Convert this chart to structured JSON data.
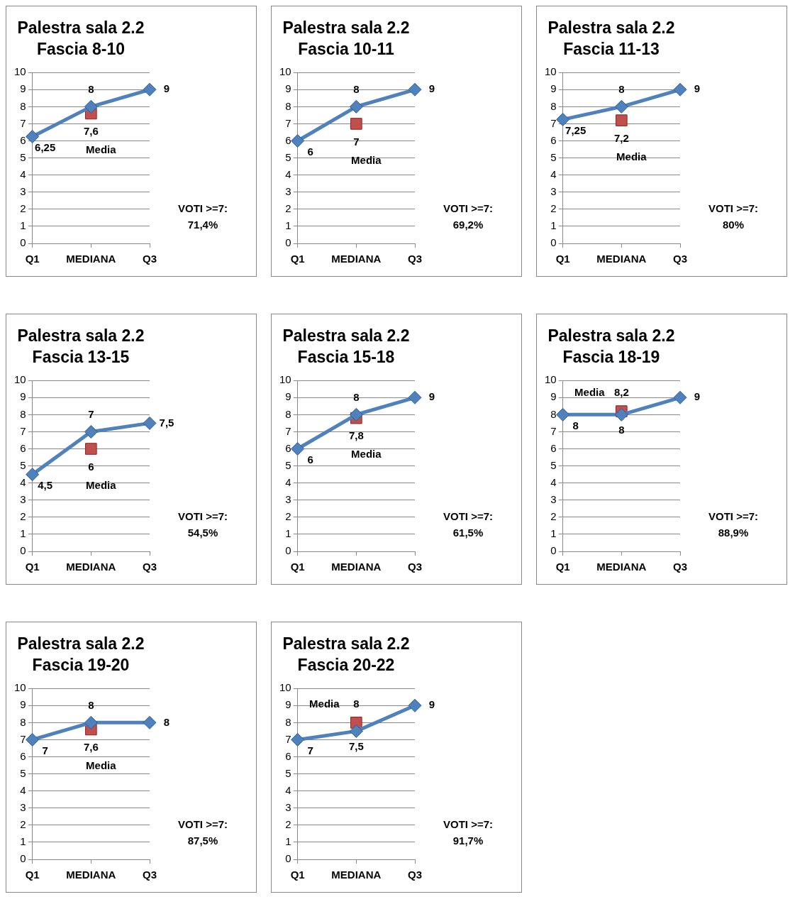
{
  "chart_data": [
    {
      "type": "line",
      "title": "Palestra sala 2.2",
      "subtitle": "Fascia 8-10",
      "categories": [
        "Q1",
        "MEDIANA",
        "Q3"
      ],
      "ylim": [
        0,
        10
      ],
      "yticks": [
        0,
        1,
        2,
        3,
        4,
        5,
        6,
        7,
        8,
        9,
        10
      ],
      "grid": "y",
      "annotations": [
        "VOTI >=7:",
        "71,4%"
      ],
      "series": [
        {
          "color": "#4f81bd",
          "marker": "diamond",
          "values": [
            6.25,
            8,
            9
          ],
          "value_labels": [
            "6,25",
            "8",
            "9"
          ]
        },
        {
          "type": "scatter",
          "name": "Media",
          "color": "#c0504d",
          "marker": "square",
          "x": [
            "MEDIANA"
          ],
          "values": [
            7.6
          ],
          "value_labels": [
            "7,6"
          ]
        }
      ]
    },
    {
      "type": "line",
      "title": "Palestra sala 2.2",
      "subtitle": "Fascia 10-11",
      "categories": [
        "Q1",
        "MEDIANA",
        "Q3"
      ],
      "ylim": [
        0,
        10
      ],
      "yticks": [
        0,
        1,
        2,
        3,
        4,
        5,
        6,
        7,
        8,
        9,
        10
      ],
      "grid": "y",
      "annotations": [
        "VOTI >=7:",
        "69,2%"
      ],
      "series": [
        {
          "color": "#4f81bd",
          "marker": "diamond",
          "values": [
            6,
            8,
            9
          ],
          "value_labels": [
            "6",
            "8",
            "9"
          ]
        },
        {
          "type": "scatter",
          "name": "Media",
          "color": "#c0504d",
          "marker": "square",
          "x": [
            "MEDIANA"
          ],
          "values": [
            7
          ],
          "value_labels": [
            "7"
          ]
        }
      ]
    },
    {
      "type": "line",
      "title": "Palestra sala 2.2",
      "subtitle": "Fascia 11-13",
      "categories": [
        "Q1",
        "MEDIANA",
        "Q3"
      ],
      "ylim": [
        0,
        10
      ],
      "yticks": [
        0,
        1,
        2,
        3,
        4,
        5,
        6,
        7,
        8,
        9,
        10
      ],
      "grid": "y",
      "annotations": [
        "VOTI >=7:",
        "80%"
      ],
      "series": [
        {
          "color": "#4f81bd",
          "marker": "diamond",
          "values": [
            7.25,
            8,
            9
          ],
          "value_labels": [
            "7,25",
            "8",
            "9"
          ]
        },
        {
          "type": "scatter",
          "name": "Media",
          "color": "#c0504d",
          "marker": "square",
          "x": [
            "MEDIANA"
          ],
          "values": [
            7.2
          ],
          "value_labels": [
            "7,2"
          ]
        }
      ]
    },
    {
      "type": "line",
      "title": "Palestra sala 2.2",
      "subtitle": "Fascia 13-15",
      "categories": [
        "Q1",
        "MEDIANA",
        "Q3"
      ],
      "ylim": [
        0,
        10
      ],
      "yticks": [
        0,
        1,
        2,
        3,
        4,
        5,
        6,
        7,
        8,
        9,
        10
      ],
      "grid": "y",
      "annotations": [
        "VOTI >=7:",
        "54,5%"
      ],
      "series": [
        {
          "color": "#4f81bd",
          "marker": "diamond",
          "values": [
            4.5,
            7,
            7.5
          ],
          "value_labels": [
            "4,5",
            "7",
            "7,5"
          ]
        },
        {
          "type": "scatter",
          "name": "Media",
          "color": "#c0504d",
          "marker": "square",
          "x": [
            "MEDIANA"
          ],
          "values": [
            6
          ],
          "value_labels": [
            "6"
          ]
        }
      ]
    },
    {
      "type": "line",
      "title": "Palestra sala 2.2",
      "subtitle": "Fascia 15-18",
      "categories": [
        "Q1",
        "MEDIANA",
        "Q3"
      ],
      "ylim": [
        0,
        10
      ],
      "yticks": [
        0,
        1,
        2,
        3,
        4,
        5,
        6,
        7,
        8,
        9,
        10
      ],
      "grid": "y",
      "annotations": [
        "VOTI >=7:",
        "61,5%"
      ],
      "series": [
        {
          "color": "#4f81bd",
          "marker": "diamond",
          "values": [
            6,
            8,
            9
          ],
          "value_labels": [
            "6",
            "8",
            "9"
          ]
        },
        {
          "type": "scatter",
          "name": "Media",
          "color": "#c0504d",
          "marker": "square",
          "x": [
            "MEDIANA"
          ],
          "values": [
            7.8
          ],
          "value_labels": [
            "7,8"
          ]
        }
      ]
    },
    {
      "type": "line",
      "title": "Palestra sala 2.2",
      "subtitle": "Fascia 18-19",
      "categories": [
        "Q1",
        "MEDIANA",
        "Q3"
      ],
      "ylim": [
        0,
        10
      ],
      "yticks": [
        0,
        1,
        2,
        3,
        4,
        5,
        6,
        7,
        8,
        9,
        10
      ],
      "grid": "y",
      "annotations": [
        "VOTI >=7:",
        "88,9%"
      ],
      "series": [
        {
          "color": "#4f81bd",
          "marker": "diamond",
          "values": [
            8,
            8,
            9
          ],
          "value_labels": [
            "8",
            "8",
            "9"
          ]
        },
        {
          "type": "scatter",
          "name": "Media",
          "color": "#c0504d",
          "marker": "square",
          "x": [
            "MEDIANA"
          ],
          "values": [
            8.2
          ],
          "value_labels": [
            "8,2"
          ]
        }
      ]
    },
    {
      "type": "line",
      "title": "Palestra sala 2.2",
      "subtitle": "Fascia 19-20",
      "categories": [
        "Q1",
        "MEDIANA",
        "Q3"
      ],
      "ylim": [
        0,
        10
      ],
      "yticks": [
        0,
        1,
        2,
        3,
        4,
        5,
        6,
        7,
        8,
        9,
        10
      ],
      "grid": "y",
      "annotations": [
        "VOTI >=7:",
        "87,5%"
      ],
      "series": [
        {
          "color": "#4f81bd",
          "marker": "diamond",
          "values": [
            7,
            8,
            8
          ],
          "value_labels": [
            "7",
            "8",
            "8"
          ]
        },
        {
          "type": "scatter",
          "name": "Media",
          "color": "#c0504d",
          "marker": "square",
          "x": [
            "MEDIANA"
          ],
          "values": [
            7.6
          ],
          "value_labels": [
            "7,6"
          ]
        }
      ]
    },
    {
      "type": "line",
      "title": "Palestra sala 2.2",
      "subtitle": "Fascia 20-22",
      "categories": [
        "Q1",
        "MEDIANA",
        "Q3"
      ],
      "ylim": [
        0,
        10
      ],
      "yticks": [
        0,
        1,
        2,
        3,
        4,
        5,
        6,
        7,
        8,
        9,
        10
      ],
      "grid": "y",
      "annotations": [
        "VOTI >=7:",
        "91,7%"
      ],
      "series": [
        {
          "color": "#4f81bd",
          "marker": "diamond",
          "values": [
            7,
            7.5,
            9
          ],
          "value_labels": [
            "7",
            "7,5",
            "9"
          ]
        },
        {
          "type": "scatter",
          "name": "Media",
          "color": "#c0504d",
          "marker": "square",
          "x": [
            "MEDIANA"
          ],
          "values": [
            8
          ],
          "value_labels": [
            "8"
          ]
        }
      ]
    }
  ]
}
